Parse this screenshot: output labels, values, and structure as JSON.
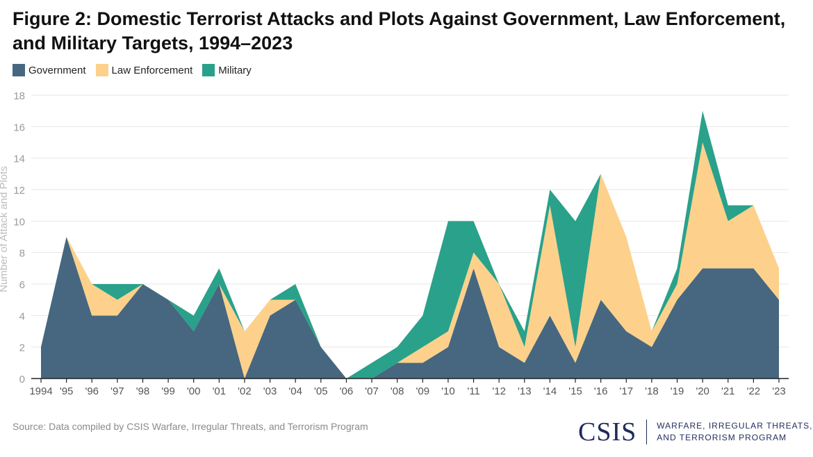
{
  "chart_data": {
    "type": "area",
    "stacked": true,
    "title": "Figure 2: Domestic Terrorist Attacks and Plots Against Government, Law Enforcement, and Military Targets, 1994–2023",
    "xlabel": "",
    "ylabel": "Number of Attack and Plots",
    "ylim": [
      0,
      18
    ],
    "yticks": [
      0,
      2,
      4,
      6,
      8,
      10,
      12,
      14,
      16,
      18
    ],
    "grid": true,
    "legend_position": "top-left",
    "categories": [
      "1994",
      "'95",
      "'96",
      "'97",
      "'98",
      "'99",
      "'00",
      "'01",
      "'02",
      "'03",
      "'04",
      "'05",
      "'06",
      "'07",
      "'08",
      "'09",
      "'10",
      "'11",
      "'12",
      "'13",
      "'14",
      "'15",
      "'16",
      "'17",
      "'18",
      "'19",
      "'20",
      "'21",
      "'22",
      "'23"
    ],
    "series": [
      {
        "name": "Government",
        "color": "#46677f",
        "values": [
          2,
          9,
          4,
          4,
          6,
          5,
          3,
          6,
          0,
          4,
          5,
          2,
          0,
          0,
          1,
          1,
          2,
          7,
          2,
          1,
          4,
          1,
          5,
          3,
          2,
          5,
          7,
          7,
          7,
          5
        ]
      },
      {
        "name": "Law Enforcement",
        "color": "#fdd18b",
        "values": [
          0,
          0,
          2,
          1,
          0,
          0,
          0,
          0,
          3,
          1,
          0,
          0,
          0,
          0,
          0,
          1,
          1,
          1,
          4,
          1,
          7,
          1,
          8,
          6,
          1,
          1,
          8,
          3,
          4,
          2
        ]
      },
      {
        "name": "Military",
        "color": "#2aa18a",
        "values": [
          0,
          0,
          0,
          1,
          0,
          0,
          1,
          1,
          0,
          0,
          1,
          0,
          0,
          1,
          1,
          2,
          7,
          2,
          0,
          1,
          1,
          8,
          0,
          0,
          0,
          1,
          2,
          1,
          0,
          0
        ]
      }
    ]
  },
  "source": "Source: Data compiled by CSIS Warfare, Irregular Threats, and Terrorism Program",
  "logo": {
    "name": "CSIS",
    "line1": "WARFARE, IRREGULAR THREATS,",
    "line2": "AND TERRORISM PROGRAM"
  }
}
